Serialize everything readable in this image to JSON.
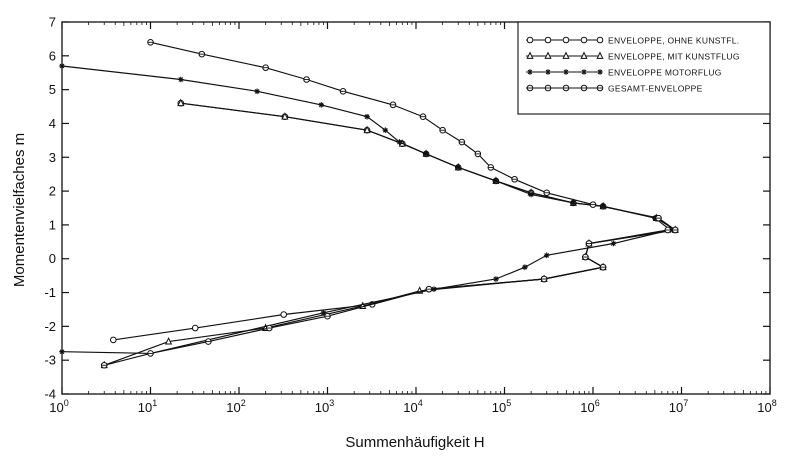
{
  "chart_data": {
    "type": "line",
    "title": "",
    "xlabel": "Summenhäufigkeit  H",
    "ylabel": "Momentenvielfaches  m",
    "x_scale": "log",
    "xlim": [
      1,
      100000000
    ],
    "ylim": [
      -4,
      7
    ],
    "grid": false,
    "legend_position": "top-right",
    "x_ticks": [
      {
        "value": 1,
        "base": "10",
        "exp": "0"
      },
      {
        "value": 10,
        "base": "10",
        "exp": "1"
      },
      {
        "value": 100,
        "base": "10",
        "exp": "2"
      },
      {
        "value": 1000,
        "base": "10",
        "exp": "3"
      },
      {
        "value": 10000,
        "base": "10",
        "exp": "4"
      },
      {
        "value": 100000,
        "base": "10",
        "exp": "5"
      },
      {
        "value": 1000000,
        "base": "10",
        "exp": "6"
      },
      {
        "value": 10000000,
        "base": "10",
        "exp": "7"
      },
      {
        "value": 100000000,
        "base": "10",
        "exp": "8"
      }
    ],
    "y_ticks": [
      -4,
      -3,
      -2,
      -1,
      0,
      1,
      2,
      3,
      4,
      5,
      6,
      7
    ],
    "series": [
      {
        "name": "ENVELOPPE, OHNE KUNSTFL.",
        "marker": "circle",
        "points": [
          [
            22,
            4.6
          ],
          [
            330,
            4.2
          ],
          [
            2800,
            3.8
          ],
          [
            7000,
            3.4
          ],
          [
            13000,
            3.1
          ],
          [
            30000,
            2.7
          ],
          [
            80000,
            2.3
          ],
          [
            200000,
            1.95
          ],
          [
            600000,
            1.65
          ],
          [
            1300000,
            1.55
          ],
          [
            5200000,
            1.2
          ],
          [
            8500000,
            0.85
          ],
          [
            900000,
            0.45
          ],
          [
            820000,
            0.05
          ],
          [
            1300000,
            -0.25
          ],
          [
            280000,
            -0.6
          ],
          [
            14000,
            -0.9
          ],
          [
            3200,
            -1.35
          ],
          [
            320,
            -1.65
          ],
          [
            32,
            -2.05
          ],
          [
            3.8,
            -2.4
          ]
        ]
      },
      {
        "name": "ENVELOPPE, MIT KUNSTFLUG",
        "marker": "triangle",
        "points": [
          [
            22,
            4.6
          ],
          [
            330,
            4.2
          ],
          [
            2800,
            3.8
          ],
          [
            7000,
            3.4
          ],
          [
            13000,
            3.1
          ],
          [
            30000,
            2.7
          ],
          [
            80000,
            2.3
          ],
          [
            200000,
            1.95
          ],
          [
            600000,
            1.65
          ],
          [
            1300000,
            1.55
          ],
          [
            5200000,
            1.2
          ],
          [
            8500000,
            0.85
          ],
          [
            900000,
            0.45
          ],
          [
            820000,
            0.05
          ],
          [
            1300000,
            -0.25
          ],
          [
            280000,
            -0.6
          ],
          [
            11000,
            -0.95
          ],
          [
            2500,
            -1.4
          ],
          [
            200,
            -2.05
          ],
          [
            16,
            -2.45
          ],
          [
            3,
            -3.15
          ]
        ]
      },
      {
        "name": "ENVELOPPE MOTORFLUG",
        "marker": "star",
        "points": [
          [
            1,
            5.7
          ],
          [
            22,
            5.3
          ],
          [
            160,
            4.95
          ],
          [
            850,
            4.55
          ],
          [
            2800,
            4.2
          ],
          [
            4500,
            3.8
          ],
          [
            6500,
            3.45
          ],
          [
            13000,
            3.1
          ],
          [
            30000,
            2.7
          ],
          [
            80000,
            2.3
          ],
          [
            200000,
            1.9
          ],
          [
            600000,
            1.65
          ],
          [
            1300000,
            1.55
          ],
          [
            5000000,
            1.2
          ],
          [
            7500000,
            0.85
          ],
          [
            1700000,
            0.45
          ],
          [
            300000,
            0.1
          ],
          [
            170000,
            -0.25
          ],
          [
            80000,
            -0.6
          ],
          [
            16000,
            -0.9
          ],
          [
            900,
            -1.6
          ],
          [
            10,
            -2.8
          ],
          [
            1,
            -2.75
          ]
        ]
      },
      {
        "name": "GESAMT-ENVELOPPE",
        "marker": "square",
        "points": [
          [
            10,
            6.4
          ],
          [
            38,
            6.05
          ],
          [
            200,
            5.65
          ],
          [
            580,
            5.3
          ],
          [
            1500,
            4.95
          ],
          [
            5500,
            4.55
          ],
          [
            12000,
            4.2
          ],
          [
            20000,
            3.8
          ],
          [
            33000,
            3.45
          ],
          [
            50000,
            3.1
          ],
          [
            70000,
            2.7
          ],
          [
            130000,
            2.35
          ],
          [
            300000,
            1.95
          ],
          [
            1000000,
            1.6
          ],
          [
            5500000,
            1.2
          ],
          [
            8500000,
            0.85
          ],
          [
            7000000,
            0.85
          ],
          [
            900000,
            0.45
          ],
          [
            820000,
            0.05
          ],
          [
            1300000,
            -0.25
          ],
          [
            280000,
            -0.6
          ],
          [
            14000,
            -0.9
          ],
          [
            1000,
            -1.7
          ],
          [
            220,
            -2.05
          ],
          [
            45,
            -2.45
          ],
          [
            10,
            -2.8
          ],
          [
            3,
            -3.15
          ]
        ]
      }
    ]
  }
}
